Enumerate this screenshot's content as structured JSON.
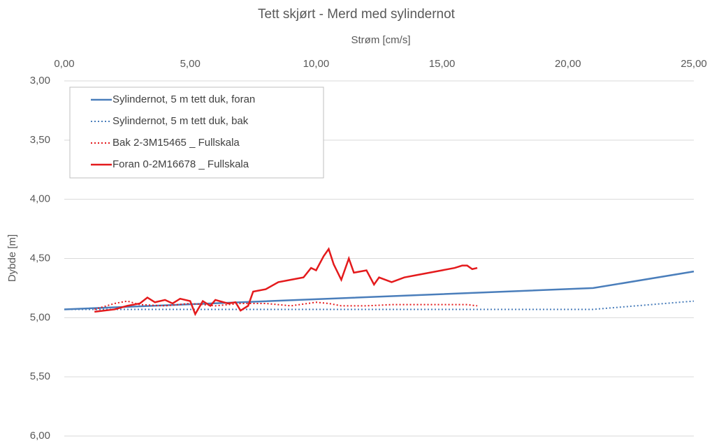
{
  "chart_data": {
    "type": "line",
    "title": "Tett skjørt - Merd med sylindernot",
    "x_label": "Strøm [cm/s]",
    "y_label": "Dybde [m]",
    "xlim": [
      0,
      25
    ],
    "xticks": [
      {
        "value": 0,
        "label": "0,00"
      },
      {
        "value": 5,
        "label": "5,00"
      },
      {
        "value": 10,
        "label": "10,00"
      },
      {
        "value": 15,
        "label": "15,00"
      },
      {
        "value": 20,
        "label": "20,00"
      },
      {
        "value": 25,
        "label": "25,00"
      }
    ],
    "ylim": [
      3,
      6
    ],
    "y_inverted": true,
    "x_axis_position": "top",
    "yticks": [
      {
        "value": 3,
        "label": "3,00"
      },
      {
        "value": 3.5,
        "label": "3,50"
      },
      {
        "value": 4,
        "label": "4,00"
      },
      {
        "value": 4.5,
        "label": "4,50"
      },
      {
        "value": 5,
        "label": "5,00"
      },
      {
        "value": 5.5,
        "label": "5,50"
      },
      {
        "value": 6,
        "label": "6,00"
      }
    ],
    "grid": true,
    "legend_position": "upper left",
    "series": [
      {
        "name": "Sylindernot, 5 m tett duk, foran",
        "color": "#4a7ebb",
        "style": "solid",
        "x": [
          0,
          21,
          25
        ],
        "values": [
          4.93,
          4.75,
          4.61
        ]
      },
      {
        "name": "Sylindernot, 5 m tett duk, bak",
        "color": "#4a7ebb",
        "style": "dotted",
        "x": [
          0,
          21,
          25
        ],
        "values": [
          4.93,
          4.93,
          4.86
        ]
      },
      {
        "name": "Bak 2-3M15465 _ Fullskala",
        "color": "#e41a1c",
        "style": "dotted",
        "x": [
          1.2,
          2,
          2.5,
          3,
          4,
          5,
          6,
          7,
          8,
          9,
          10,
          10.5,
          11,
          12,
          13,
          14,
          15,
          16,
          16.4
        ],
        "values": [
          4.93,
          4.88,
          4.86,
          4.89,
          4.9,
          4.88,
          4.9,
          4.88,
          4.88,
          4.9,
          4.87,
          4.88,
          4.9,
          4.9,
          4.89,
          4.89,
          4.89,
          4.89,
          4.9
        ]
      },
      {
        "name": "Foran 0-2M16678 _ Fullskala",
        "color": "#e41a1c",
        "style": "solid",
        "x": [
          1.2,
          2,
          2.5,
          3,
          3.3,
          3.6,
          4,
          4.3,
          4.6,
          5,
          5.2,
          5.5,
          5.8,
          6,
          6.5,
          6.8,
          7,
          7.3,
          7.5,
          8,
          8.5,
          9,
          9.5,
          9.8,
          10,
          10.3,
          10.5,
          10.7,
          11,
          11.3,
          11.5,
          12,
          12.3,
          12.5,
          13,
          13.5,
          14,
          15,
          15.5,
          15.8,
          16,
          16.2,
          16.4
        ],
        "values": [
          4.95,
          4.93,
          4.9,
          4.88,
          4.83,
          4.87,
          4.85,
          4.88,
          4.84,
          4.86,
          4.97,
          4.86,
          4.9,
          4.85,
          4.88,
          4.87,
          4.94,
          4.9,
          4.78,
          4.76,
          4.7,
          4.68,
          4.66,
          4.58,
          4.6,
          4.48,
          4.42,
          4.55,
          4.68,
          4.5,
          4.62,
          4.6,
          4.72,
          4.66,
          4.7,
          4.66,
          4.64,
          4.6,
          4.58,
          4.56,
          4.56,
          4.59,
          4.58
        ]
      }
    ]
  }
}
